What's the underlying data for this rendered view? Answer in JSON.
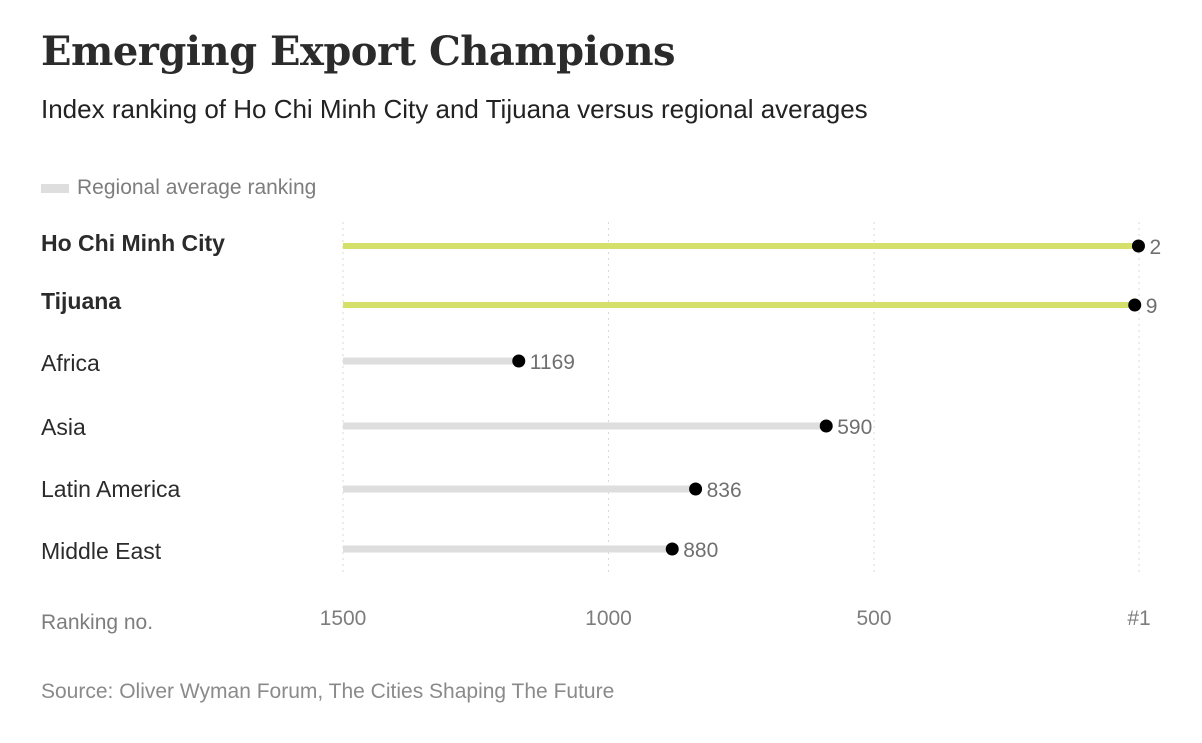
{
  "header": {
    "title": "Emerging Export Champions",
    "subtitle": "Index ranking of Ho Chi Minh City and Tijuana versus regional averages"
  },
  "legend": {
    "label": "Regional average ranking",
    "color": "#dedede"
  },
  "footer": {
    "source": "Source: Oliver Wyman Forum, The Cities Shaping The Future"
  },
  "colors": {
    "highlight": "#d4e06a",
    "regional": "#dedede",
    "dot": "#000000",
    "grid": "#d9d9d9"
  },
  "chart_data": {
    "type": "dot-bar",
    "title": "Emerging Export Champions",
    "subtitle": "Index ranking of Ho Chi Minh City and Tijuana versus regional averages",
    "xlabel": "Ranking no.",
    "x_domain": [
      1500,
      1
    ],
    "ticks": [
      {
        "value": 1500,
        "label": "1500"
      },
      {
        "value": 1000,
        "label": "1000"
      },
      {
        "value": 500,
        "label": "500"
      },
      {
        "value": 1,
        "label": "#1"
      }
    ],
    "rows": [
      {
        "name": "Ho Chi Minh City",
        "value": 2,
        "label": "2",
        "highlight": true
      },
      {
        "name": "Tijuana",
        "value": 9,
        "label": "9",
        "highlight": true
      },
      {
        "name": "Africa",
        "value": 1169,
        "label": "1169",
        "highlight": false
      },
      {
        "name": "Asia",
        "value": 590,
        "label": "590",
        "highlight": false
      },
      {
        "name": "Latin America",
        "value": 836,
        "label": "836",
        "highlight": false
      },
      {
        "name": "Middle East",
        "value": 880,
        "label": "880",
        "highlight": false
      }
    ]
  }
}
